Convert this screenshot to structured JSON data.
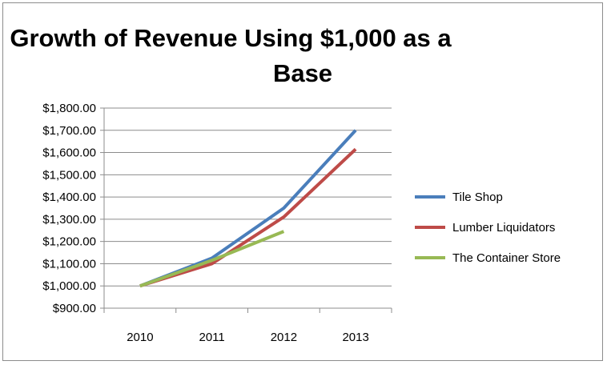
{
  "chart_data": {
    "type": "line",
    "title_lines": [
      "Growth of Revenue Using $1,000 as a",
      "Base"
    ],
    "categories": [
      "2010",
      "2011",
      "2012",
      "2013"
    ],
    "ylim": [
      900,
      1800
    ],
    "ystep": 100,
    "ytick_labels": [
      "$900.00",
      "$1,000.00",
      "$1,100.00",
      "$1,200.00",
      "$1,300.00",
      "$1,400.00",
      "$1,500.00",
      "$1,600.00",
      "$1,700.00",
      "$1,800.00"
    ],
    "grid": true,
    "legend_position": "right",
    "series": [
      {
        "name": "Tile Shop",
        "color": "#4a7ebb",
        "values": [
          1000,
          1125,
          1350,
          1700
        ]
      },
      {
        "name": "Lumber Liquidators",
        "color": "#be4b48",
        "values": [
          1000,
          1100,
          1310,
          1615
        ]
      },
      {
        "name": "The Container Store",
        "color": "#98b954",
        "values": [
          1000,
          1115,
          1245,
          null
        ]
      }
    ]
  }
}
